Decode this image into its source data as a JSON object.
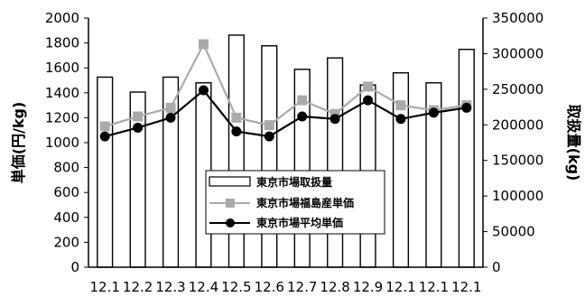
{
  "chart_data": {
    "type": "bar",
    "categories": [
      "12.1",
      "12.2",
      "12.3",
      "12.4",
      "12.5",
      "12.6",
      "12.7",
      "12.8",
      "12.9",
      "12.1",
      "12.1",
      "12.1"
    ],
    "ylabel_left": "単価(円/kg)",
    "ylabel_right": "取扱量(kg)",
    "ylim_left": [
      0,
      2000
    ],
    "ylim_right": [
      0,
      350000
    ],
    "left_ticks": [
      "0",
      "200",
      "400",
      "600",
      "800",
      "1000",
      "1200",
      "1400",
      "1600",
      "1800",
      "2000"
    ],
    "right_ticks": [
      "0",
      "50000",
      "100000",
      "150000",
      "200000",
      "250000",
      "300000",
      "350000"
    ],
    "series": [
      {
        "name": "東京市場取扱量",
        "kind": "bar",
        "axis": "right",
        "values": [
          267000,
          246000,
          267000,
          259000,
          326000,
          311000,
          278000,
          294000,
          256000,
          273000,
          259000,
          306000
        ]
      },
      {
        "name": "東京市場福島産単価",
        "kind": "line",
        "axis": "left",
        "marker": "square",
        "color": "#aaaaaa",
        "values": [
          1130,
          1210,
          1280,
          1790,
          1200,
          1140,
          1340,
          1230,
          1450,
          1300,
          1260,
          1300
        ]
      },
      {
        "name": "東京市場平均単価",
        "kind": "line",
        "axis": "left",
        "marker": "circle",
        "color": "#000000",
        "values": [
          1050,
          1120,
          1200,
          1420,
          1090,
          1050,
          1210,
          1190,
          1340,
          1190,
          1240,
          1280
        ]
      }
    ],
    "grid": false,
    "legend_position": "bottom-center"
  }
}
